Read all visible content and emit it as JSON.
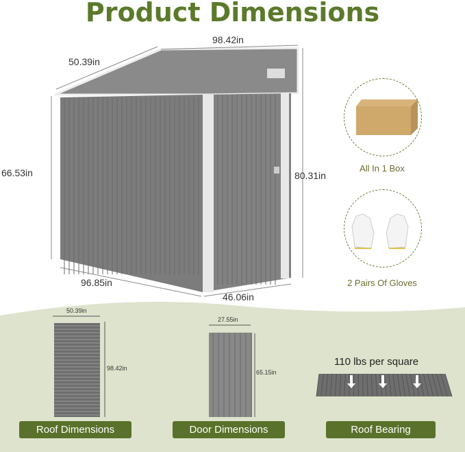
{
  "title": "Product Dimensions",
  "shed": {
    "roof_depth": "50.39in",
    "roof_width": "98.42in",
    "low_height": "66.53in",
    "high_height": "80.31in",
    "side_length": "96.85in",
    "front_width": "46.06in"
  },
  "features": [
    {
      "label": "All In 1 Box",
      "icon": "cardboard-box-icon"
    },
    {
      "label": "2 Pairs Of Gloves",
      "icon": "gloves-icon"
    }
  ],
  "panels": {
    "roof": {
      "label": "Roof Dimensions",
      "width": "50.39in",
      "height": "98.42in"
    },
    "door": {
      "label": "Door Dimensions",
      "width": "27.55in",
      "height": "65.15in"
    },
    "bearing": {
      "label": "Roof Bearing",
      "text": "110 lbs per square"
    }
  },
  "colors": {
    "accent": "#59712a",
    "metal": "#7a7a7a",
    "background": "#dde3cc"
  }
}
